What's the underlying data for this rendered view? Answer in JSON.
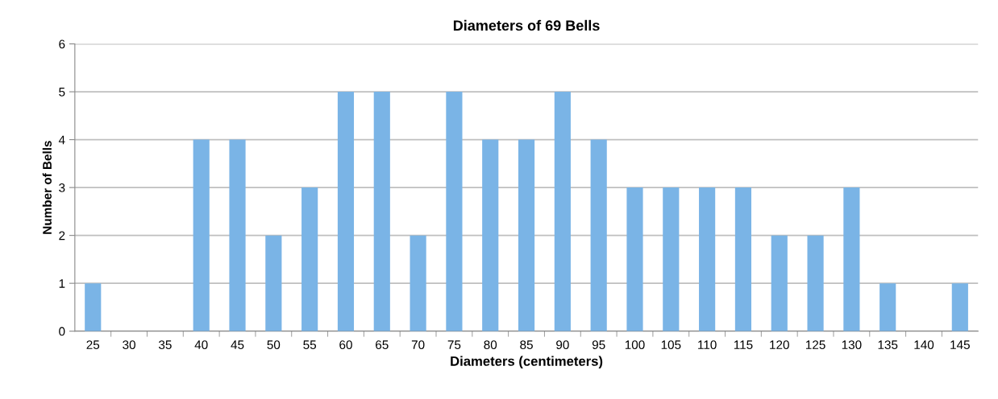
{
  "chart_data": {
    "type": "bar",
    "title": "Diameters of 69 Bells",
    "xlabel": "Diameters (centimeters)",
    "ylabel": "Number of Bells",
    "categories": [
      "25",
      "30",
      "35",
      "40",
      "45",
      "50",
      "55",
      "60",
      "65",
      "70",
      "75",
      "80",
      "85",
      "90",
      "95",
      "100",
      "105",
      "110",
      "115",
      "120",
      "125",
      "130",
      "135",
      "140",
      "145"
    ],
    "values": [
      1,
      0,
      0,
      4,
      4,
      2,
      3,
      5,
      5,
      2,
      5,
      4,
      4,
      5,
      4,
      3,
      3,
      3,
      3,
      2,
      2,
      3,
      1,
      0,
      1
    ],
    "color": "#7ab4e6",
    "ylim": [
      0,
      6
    ],
    "yticks": [
      0,
      1,
      2,
      3,
      4,
      5,
      6
    ],
    "grid": "y",
    "legend": false
  }
}
